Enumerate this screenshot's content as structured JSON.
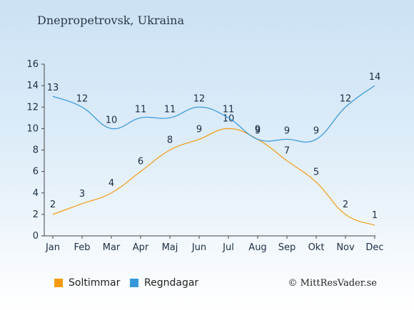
{
  "title": "Dnepropetrovsk, Ukraina",
  "copyright": "© MittResVader.se",
  "colors": {
    "sun": "#f39c12",
    "rain": "#3498db",
    "text": "#1c2d44"
  },
  "chart_data": {
    "type": "line",
    "categories": [
      "Jan",
      "Feb",
      "Mar",
      "Apr",
      "Maj",
      "Jun",
      "Jul",
      "Aug",
      "Sep",
      "Okt",
      "Nov",
      "Dec"
    ],
    "ylim": [
      0,
      16
    ],
    "yticks": [
      "0",
      "2",
      "4",
      "6",
      "8",
      "10",
      "12",
      "14",
      "16"
    ],
    "grid": false,
    "legend_position": "bottom",
    "series": [
      {
        "name": "Soltimmar",
        "color": "#f39c12",
        "values": [
          2,
          3,
          4,
          6,
          8,
          9,
          10,
          9,
          7,
          5,
          2,
          1
        ]
      },
      {
        "name": "Regndagar",
        "color": "#3498db",
        "values": [
          13,
          12,
          10,
          11,
          11,
          12,
          11,
          9,
          9,
          9,
          12,
          14
        ]
      }
    ]
  }
}
